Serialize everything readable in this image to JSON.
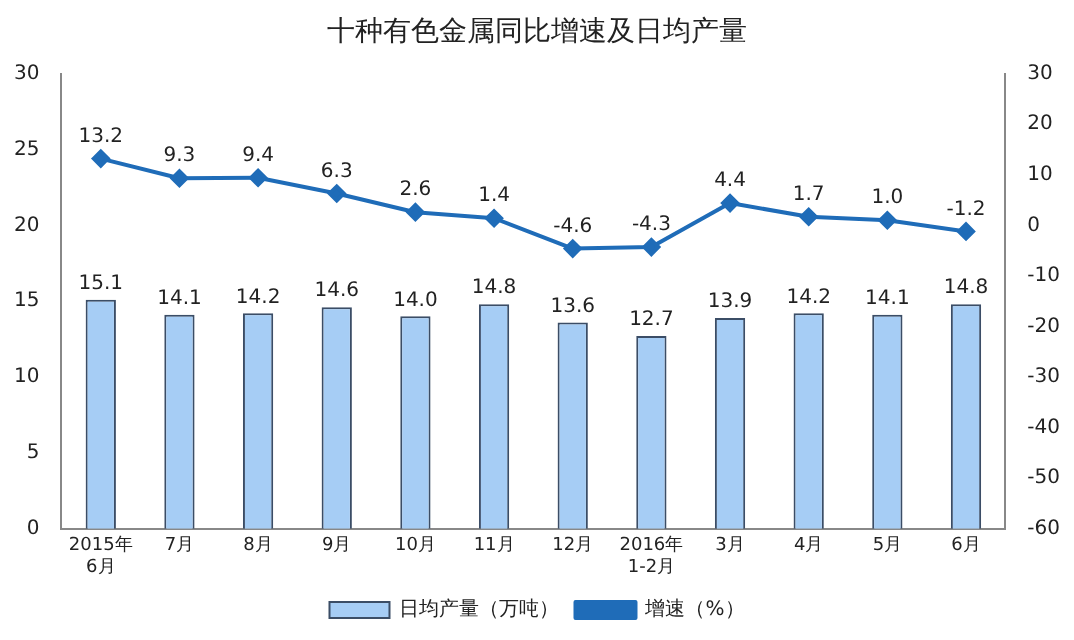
{
  "chart_data": {
    "type": "bar",
    "title": "十种有色金属同比增速及日均产量",
    "categories": [
      "2015年\n6月",
      "7月",
      "8月",
      "9月",
      "10月",
      "11月",
      "12月",
      "2016年\n1-2月",
      "3月",
      "4月",
      "5月",
      "6月"
    ],
    "series": [
      {
        "name": "日均产量（万吨）",
        "color": "#a6cdf5",
        "values": [
          15.1,
          14.1,
          14.2,
          14.6,
          14.0,
          14.8,
          13.6,
          12.7,
          13.9,
          14.2,
          14.1,
          14.8
        ],
        "value_labels": [
          "15.1",
          "14.1",
          "14.2",
          "14.6",
          "14.0",
          "14.8",
          "13.6",
          "12.7",
          "13.9",
          "14.2",
          "14.1",
          "14.8"
        ]
      },
      {
        "name": "增速（%）",
        "type": "line",
        "axis": "y2",
        "color": "#1f6cb8",
        "values": [
          13.2,
          9.3,
          9.4,
          6.3,
          2.6,
          1.4,
          -4.6,
          -4.3,
          4.4,
          1.7,
          1.0,
          -1.2
        ],
        "value_labels": [
          "13.2",
          "9.3",
          "9.4",
          "6.3",
          "2.6",
          "1.4",
          "-4.6",
          "-4.3",
          "4.4",
          "1.7",
          "1.0",
          "-1.2"
        ]
      }
    ],
    "ylim": [
      0,
      30
    ],
    "yticks": [
      0,
      5,
      10,
      15,
      20,
      25,
      30
    ],
    "y2lim": [
      -60,
      30
    ],
    "y2ticks": [
      -60,
      -50,
      -40,
      -30,
      -20,
      -10,
      0,
      10,
      20,
      30
    ],
    "grid": false,
    "legend": "bottom",
    "marker": "diamond",
    "line_style": "solid"
  }
}
